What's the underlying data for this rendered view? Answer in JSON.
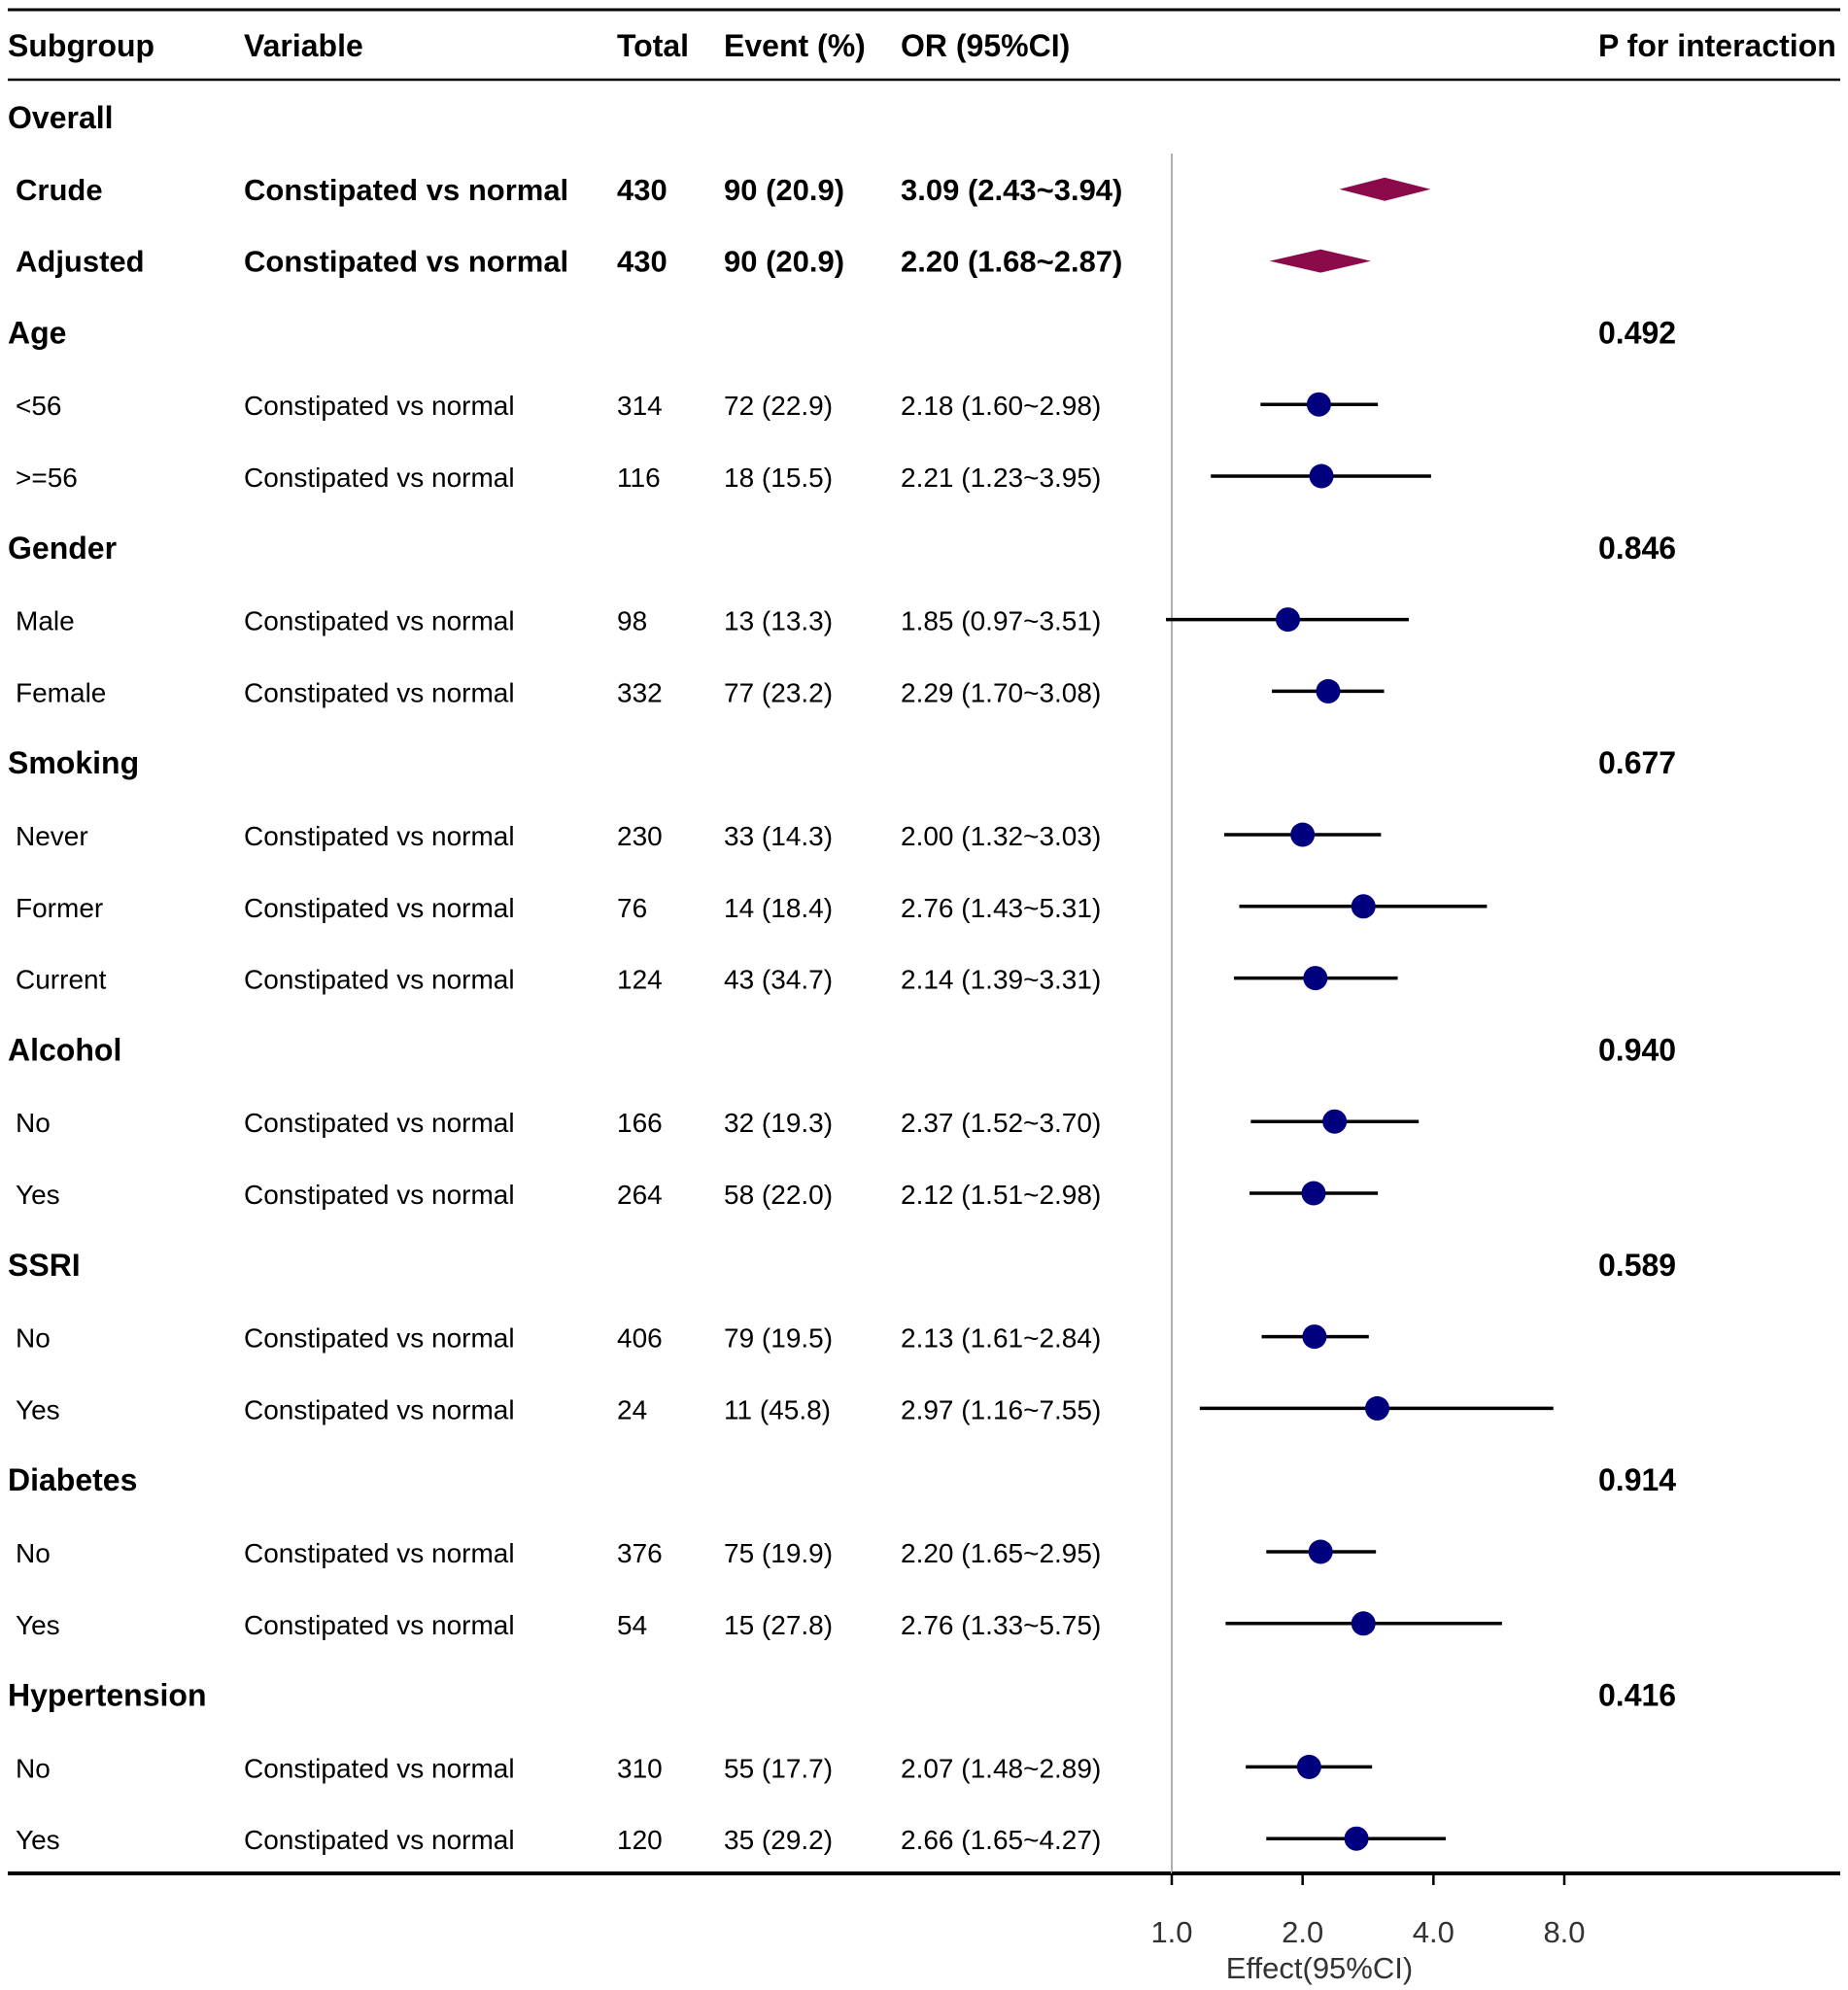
{
  "chart_data": {
    "type": "forest",
    "headers": {
      "subgroup": "Subgroup",
      "variable": "Variable",
      "total": "Total",
      "event": "Event (%)",
      "or": "OR (95%CI)",
      "p": "P for interaction"
    },
    "x_axis": {
      "scale": "log2",
      "reference": 1.0,
      "range": [
        1.0,
        8.0
      ],
      "ticks": [
        1.0,
        2.0,
        4.0,
        8.0
      ],
      "tick_labels": [
        "1.0",
        "2.0",
        "4.0",
        "8.0"
      ],
      "label": "Effect(95%CI)"
    },
    "colors": {
      "diamond": "#8b0a4a",
      "point": "#00007f",
      "line": "#000000",
      "reference": "#b0b0b0"
    },
    "rows": [
      {
        "kind": "group",
        "label": "Overall"
      },
      {
        "kind": "overall",
        "label": "Crude",
        "variable": "Constipated vs normal",
        "total": "430",
        "event": "90 (20.9)",
        "or_text": "3.09 (2.43~3.94)",
        "or": 3.09,
        "lo": 2.43,
        "hi": 3.94
      },
      {
        "kind": "overall",
        "label": "Adjusted",
        "variable": "Constipated vs normal",
        "total": "430",
        "event": "90 (20.9)",
        "or_text": "2.20 (1.68~2.87)",
        "or": 2.2,
        "lo": 1.68,
        "hi": 2.87
      },
      {
        "kind": "group",
        "label": "Age",
        "p": "0.492"
      },
      {
        "kind": "sub",
        "label": "<56",
        "variable": "Constipated vs normal",
        "total": "314",
        "event": "72 (22.9)",
        "or_text": "2.18 (1.60~2.98)",
        "or": 2.18,
        "lo": 1.6,
        "hi": 2.98
      },
      {
        "kind": "sub",
        "label": ">=56",
        "variable": "Constipated vs normal",
        "total": "116",
        "event": "18 (15.5)",
        "or_text": "2.21 (1.23~3.95)",
        "or": 2.21,
        "lo": 1.23,
        "hi": 3.95
      },
      {
        "kind": "group",
        "label": "Gender",
        "p": "0.846"
      },
      {
        "kind": "sub",
        "label": "Male",
        "variable": "Constipated vs normal",
        "total": "98",
        "event": "13 (13.3)",
        "or_text": "1.85 (0.97~3.51)",
        "or": 1.85,
        "lo": 0.97,
        "hi": 3.51
      },
      {
        "kind": "sub",
        "label": "Female",
        "variable": "Constipated vs normal",
        "total": "332",
        "event": "77 (23.2)",
        "or_text": "2.29 (1.70~3.08)",
        "or": 2.29,
        "lo": 1.7,
        "hi": 3.08
      },
      {
        "kind": "group",
        "label": "Smoking",
        "p": "0.677"
      },
      {
        "kind": "sub",
        "label": "Never",
        "variable": "Constipated vs normal",
        "total": "230",
        "event": "33 (14.3)",
        "or_text": "2.00 (1.32~3.03)",
        "or": 2.0,
        "lo": 1.32,
        "hi": 3.03
      },
      {
        "kind": "sub",
        "label": "Former",
        "variable": "Constipated vs normal",
        "total": "76",
        "event": "14 (18.4)",
        "or_text": "2.76 (1.43~5.31)",
        "or": 2.76,
        "lo": 1.43,
        "hi": 5.31
      },
      {
        "kind": "sub",
        "label": "Current",
        "variable": "Constipated vs normal",
        "total": "124",
        "event": "43 (34.7)",
        "or_text": "2.14 (1.39~3.31)",
        "or": 2.14,
        "lo": 1.39,
        "hi": 3.31
      },
      {
        "kind": "group",
        "label": "Alcohol",
        "p": "0.940"
      },
      {
        "kind": "sub",
        "label": "No",
        "variable": "Constipated vs normal",
        "total": "166",
        "event": "32 (19.3)",
        "or_text": "2.37 (1.52~3.70)",
        "or": 2.37,
        "lo": 1.52,
        "hi": 3.7
      },
      {
        "kind": "sub",
        "label": "Yes",
        "variable": "Constipated vs normal",
        "total": "264",
        "event": "58 (22.0)",
        "or_text": "2.12 (1.51~2.98)",
        "or": 2.12,
        "lo": 1.51,
        "hi": 2.98
      },
      {
        "kind": "group",
        "label": "SSRI",
        "p": "0.589"
      },
      {
        "kind": "sub",
        "label": "No",
        "variable": "Constipated vs normal",
        "total": "406",
        "event": "79 (19.5)",
        "or_text": "2.13 (1.61~2.84)",
        "or": 2.13,
        "lo": 1.61,
        "hi": 2.84
      },
      {
        "kind": "sub",
        "label": "Yes",
        "variable": "Constipated vs normal",
        "total": "24",
        "event": "11 (45.8)",
        "or_text": "2.97 (1.16~7.55)",
        "or": 2.97,
        "lo": 1.16,
        "hi": 7.55
      },
      {
        "kind": "group",
        "label": "Diabetes",
        "p": "0.914"
      },
      {
        "kind": "sub",
        "label": "No",
        "variable": "Constipated vs normal",
        "total": "376",
        "event": "75 (19.9)",
        "or_text": "2.20 (1.65~2.95)",
        "or": 2.2,
        "lo": 1.65,
        "hi": 2.95
      },
      {
        "kind": "sub",
        "label": "Yes",
        "variable": "Constipated vs normal",
        "total": "54",
        "event": "15 (27.8)",
        "or_text": "2.76 (1.33~5.75)",
        "or": 2.76,
        "lo": 1.33,
        "hi": 5.75
      },
      {
        "kind": "group",
        "label": "Hypertension",
        "p": "0.416"
      },
      {
        "kind": "sub",
        "label": "No",
        "variable": "Constipated vs normal",
        "total": "310",
        "event": "55 (17.7)",
        "or_text": "2.07 (1.48~2.89)",
        "or": 2.07,
        "lo": 1.48,
        "hi": 2.89
      },
      {
        "kind": "sub",
        "label": "Yes",
        "variable": "Constipated vs normal",
        "total": "120",
        "event": "35 (29.2)",
        "or_text": "2.66 (1.65~4.27)",
        "or": 2.66,
        "lo": 1.65,
        "hi": 4.27
      }
    ]
  }
}
